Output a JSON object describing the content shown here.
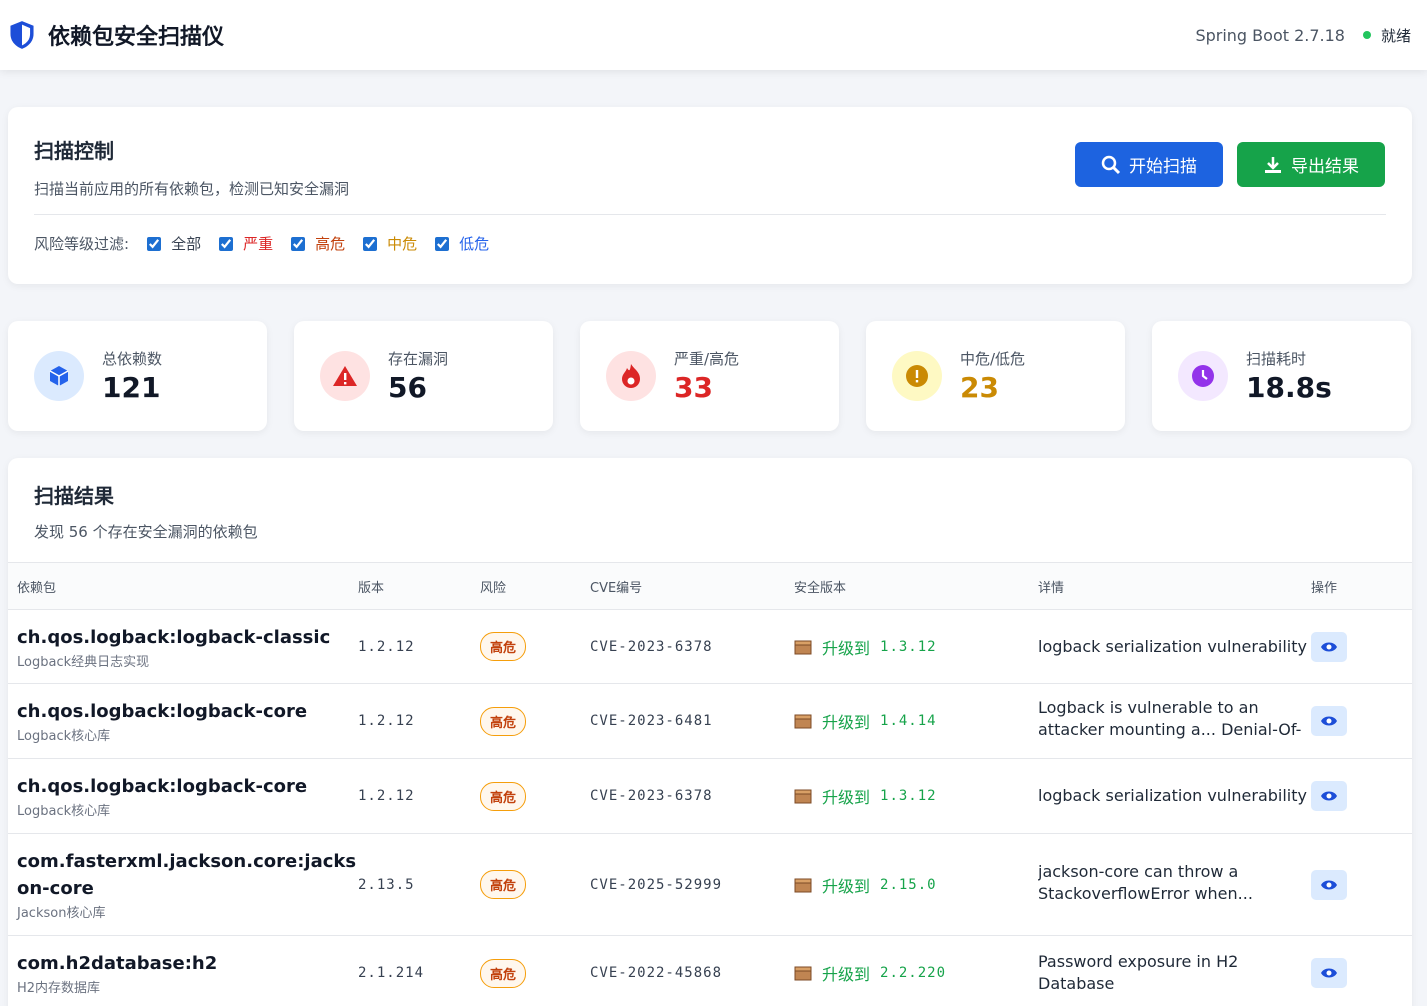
{
  "header": {
    "title": "依赖包安全扫描仪",
    "version": "Spring Boot 2.7.18",
    "status": "就绪"
  },
  "scan_control": {
    "title": "扫描控制",
    "description": "扫描当前应用的所有依赖包，检测已知安全漏洞",
    "buttons": [
      "开始扫描",
      "导出结果"
    ],
    "filter_label": "风险等级过滤:",
    "filters": [
      "全部",
      "严重",
      "高危",
      "中危",
      "低危"
    ]
  },
  "stats": [
    {
      "label": "总依赖数",
      "value": 121
    },
    {
      "label": "存在漏洞",
      "value": 56
    },
    {
      "label": "严重/高危",
      "value": 33
    },
    {
      "label": "中危/低危",
      "value": 23
    },
    {
      "label": "扫描耗时",
      "value": "18.8s"
    }
  ],
  "results": {
    "title": "扫描结果",
    "summary": "发现 56 个存在安全漏洞的依赖包",
    "columns": [
      "依赖包",
      "版本",
      "风险",
      "CVE编号",
      "安全版本",
      "详情",
      "操作"
    ],
    "rows": [
      {
        "name": "ch.qos.logback:logback-classic",
        "description": "Logback经典日志实现",
        "version": "1.2.12",
        "risk": "高危",
        "cve": "CVE-2023-6378",
        "upgrade": "升级到",
        "safe_version": "1.3.12",
        "details": "logback serialization vulnerability"
      },
      {
        "name": "ch.qos.logback:logback-core",
        "description": "Logback核心库",
        "version": "1.2.12",
        "risk": "高危",
        "cve": "CVE-2023-6481",
        "upgrade": "升级到",
        "safe_version": "1.4.14",
        "details": "Logback is vulnerable to an attacker mounting a... Denial-Of-Se"
      },
      {
        "name": "ch.qos.logback:logback-core",
        "description": "Logback核心库",
        "version": "1.2.12",
        "risk": "高危",
        "cve": "CVE-2023-6378",
        "upgrade": "升级到",
        "safe_version": "1.3.12",
        "details": "logback serialization vulnerability"
      },
      {
        "name": "com.fasterxml.jackson.core:jackson-core",
        "description": "Jackson核心库",
        "version": "2.13.5",
        "risk": "高危",
        "cve": "CVE-2025-52999",
        "upgrade": "升级到",
        "safe_version": "2.15.0",
        "details": "jackson-core can throw a StackoverflowError when... processing"
      },
      {
        "name": "com.h2database:h2",
        "description": "H2内存数据库",
        "version": "2.1.214",
        "risk": "高危",
        "cve": "CVE-2022-45868",
        "upgrade": "升级到",
        "safe_version": "2.2.220",
        "details": "Password exposure in H2 Database"
      }
    ]
  }
}
